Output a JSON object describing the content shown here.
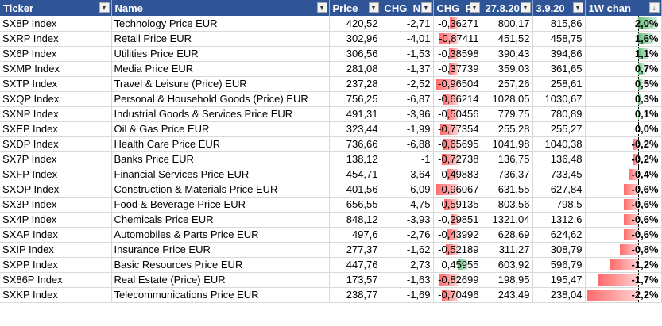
{
  "headers": {
    "ticker": "Ticker",
    "name": "Name",
    "price": "Price",
    "chg_net": "CHG_N",
    "chg_pct": "CHG_P",
    "date1": "27.8.20",
    "date2": "3.9.20",
    "week": "1W chan"
  },
  "colors": {
    "header_bg": "#2f5597",
    "neg_bar": "#ff6b6b",
    "pos_bar": "#63be7b"
  },
  "rows": [
    {
      "ticker": "SX8P Index",
      "name": "Technology Price EUR",
      "price": "420,52",
      "chg_net": "-2,71",
      "chg_pct_display": "-0,36271",
      "chg_pct": -0.36271,
      "d1": "800,17",
      "d2": "815,86",
      "week_display": "2,0%",
      "week": 2.0
    },
    {
      "ticker": "SXRP Index",
      "name": "Retail Price EUR",
      "price": "302,96",
      "chg_net": "-4,01",
      "chg_pct_display": "-0,87411",
      "chg_pct": -0.87411,
      "d1": "451,52",
      "d2": "458,75",
      "week_display": "1,6%",
      "week": 1.6
    },
    {
      "ticker": "SX6P Index",
      "name": "Utilities Price EUR",
      "price": "306,56",
      "chg_net": "-1,53",
      "chg_pct_display": "-0,38598",
      "chg_pct": -0.38598,
      "d1": "390,43",
      "d2": "394,86",
      "week_display": "1,1%",
      "week": 1.1
    },
    {
      "ticker": "SXMP Index",
      "name": "Media Price EUR",
      "price": "281,08",
      "chg_net": "-1,37",
      "chg_pct_display": "-0,37739",
      "chg_pct": -0.37739,
      "d1": "359,03",
      "d2": "361,65",
      "week_display": "0,7%",
      "week": 0.7
    },
    {
      "ticker": "SXTP Index",
      "name": "Travel & Leisure (Price) EUR",
      "price": "237,28",
      "chg_net": "-2,52",
      "chg_pct_display": "-0,96504",
      "chg_pct": -0.96504,
      "d1": "257,26",
      "d2": "258,61",
      "week_display": "0,5%",
      "week": 0.5
    },
    {
      "ticker": "SXQP Index",
      "name": "Personal & Household Goods (Price) EUR",
      "price": "756,25",
      "chg_net": "-6,87",
      "chg_pct_display": "-0,66214",
      "chg_pct": -0.66214,
      "d1": "1028,05",
      "d2": "1030,67",
      "week_display": "0,3%",
      "week": 0.3
    },
    {
      "ticker": "SXNP Index",
      "name": "Industrial Goods & Services Price EUR",
      "price": "491,31",
      "chg_net": "-3,96",
      "chg_pct_display": "-0,50456",
      "chg_pct": -0.50456,
      "d1": "779,75",
      "d2": "780,89",
      "week_display": "0,1%",
      "week": 0.1
    },
    {
      "ticker": "SXEP Index",
      "name": "Oil & Gas Price EUR",
      "price": "323,44",
      "chg_net": "-1,99",
      "chg_pct_display": "-0,77354",
      "chg_pct": -0.77354,
      "d1": "255,28",
      "d2": "255,27",
      "week_display": "0,0%",
      "week": 0.0
    },
    {
      "ticker": "SXDP Index",
      "name": "Health Care Price EUR",
      "price": "736,66",
      "chg_net": "-6,88",
      "chg_pct_display": "-0,65695",
      "chg_pct": -0.65695,
      "d1": "1041,98",
      "d2": "1040,38",
      "week_display": "-0,2%",
      "week": -0.2
    },
    {
      "ticker": "SX7P Index",
      "name": "Banks Price EUR",
      "price": "138,12",
      "chg_net": "-1",
      "chg_pct_display": "-0,72738",
      "chg_pct": -0.72738,
      "d1": "136,75",
      "d2": "136,48",
      "week_display": "-0,2%",
      "week": -0.2
    },
    {
      "ticker": "SXFP Index",
      "name": "Financial Services Price EUR",
      "price": "454,71",
      "chg_net": "-3,64",
      "chg_pct_display": "-0,49883",
      "chg_pct": -0.49883,
      "d1": "736,37",
      "d2": "733,45",
      "week_display": "-0,4%",
      "week": -0.4
    },
    {
      "ticker": "SXOP Index",
      "name": "Construction & Materials Price EUR",
      "price": "401,56",
      "chg_net": "-6,09",
      "chg_pct_display": "-0,96067",
      "chg_pct": -0.96067,
      "d1": "631,55",
      "d2": "627,84",
      "week_display": "-0,6%",
      "week": -0.6
    },
    {
      "ticker": "SX3P Index",
      "name": "Food & Beverage Price EUR",
      "price": "656,55",
      "chg_net": "-4,75",
      "chg_pct_display": "-0,59135",
      "chg_pct": -0.59135,
      "d1": "803,56",
      "d2": "798,5",
      "week_display": "-0,6%",
      "week": -0.6
    },
    {
      "ticker": "SX4P Index",
      "name": "Chemicals Price EUR",
      "price": "848,12",
      "chg_net": "-3,93",
      "chg_pct_display": "-0,29851",
      "chg_pct": -0.29851,
      "d1": "1321,04",
      "d2": "1312,6",
      "week_display": "-0,6%",
      "week": -0.6
    },
    {
      "ticker": "SXAP Index",
      "name": "Automobiles & Parts Price EUR",
      "price": "497,6",
      "chg_net": "-2,76",
      "chg_pct_display": "-0,43992",
      "chg_pct": -0.43992,
      "d1": "628,69",
      "d2": "624,62",
      "week_display": "-0,6%",
      "week": -0.6
    },
    {
      "ticker": "SXIP Index",
      "name": "Insurance Price EUR",
      "price": "277,37",
      "chg_net": "-1,62",
      "chg_pct_display": "-0,52189",
      "chg_pct": -0.52189,
      "d1": "311,27",
      "d2": "308,79",
      "week_display": "-0,8%",
      "week": -0.8
    },
    {
      "ticker": "SXPP Index",
      "name": "Basic Resources Price EUR",
      "price": "447,76",
      "chg_net": "2,73",
      "chg_pct_display": "0,45955",
      "chg_pct": 0.45955,
      "d1": "603,92",
      "d2": "596,79",
      "week_display": "-1,2%",
      "week": -1.2
    },
    {
      "ticker": "SX86P Index",
      "name": "Real Estate (Price) EUR",
      "price": "173,57",
      "chg_net": "-1,63",
      "chg_pct_display": "-0,82699",
      "chg_pct": -0.82699,
      "d1": "198,95",
      "d2": "195,47",
      "week_display": "-1,7%",
      "week": -1.7
    },
    {
      "ticker": "SXKP Index",
      "name": "Telecommunications Price EUR",
      "price": "238,77",
      "chg_net": "-1,69",
      "chg_pct_display": "-0,70496",
      "chg_pct": -0.70496,
      "d1": "243,49",
      "d2": "238,04",
      "week_display": "-2,2%",
      "week": -2.2
    }
  ]
}
